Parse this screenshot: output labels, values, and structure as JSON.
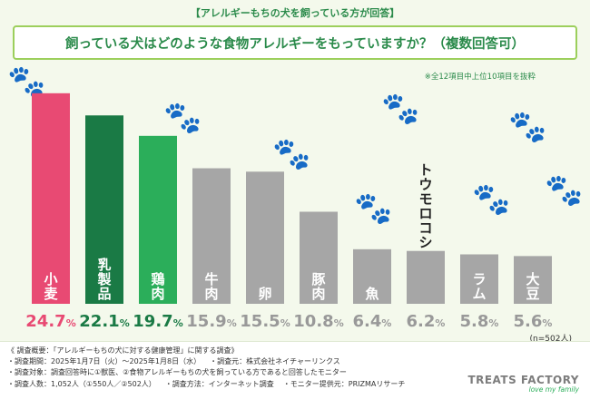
{
  "header": {
    "badge": "【アレルギーもちの犬を飼っている方が回答】",
    "title": "飼っている犬はどのような食物アレルギーをもっていますか？（複数回答可）",
    "note": "※全12項目中上位10項目を抜粋"
  },
  "chart_data": {
    "type": "bar",
    "title": "飼っている犬はどのような食物アレルギーをもっていますか？（複数回答可）",
    "categories": [
      "小麦",
      "乳製品",
      "鶏肉",
      "牛肉",
      "卵",
      "豚肉",
      "魚",
      "トウモロコシ",
      "ラム",
      "大豆"
    ],
    "values": [
      24.7,
      22.1,
      19.7,
      15.9,
      15.5,
      10.8,
      6.4,
      6.2,
      5.8,
      5.6
    ],
    "unit": "%",
    "value_labels": [
      "24.7%",
      "22.1%",
      "19.7%",
      "15.9%",
      "15.5%",
      "10.8%",
      "6.4%",
      "6.2%",
      "5.8%",
      "5.6%"
    ],
    "colors": [
      "#e84a73",
      "#1a7a45",
      "#2bae5a",
      "#a6a6a6",
      "#a6a6a6",
      "#a6a6a6",
      "#a6a6a6",
      "#a6a6a6",
      "#a6a6a6",
      "#a6a6a6"
    ],
    "ylim": [
      0,
      25
    ],
    "sample": "(n=502人)"
  },
  "footer": {
    "lines": [
      "《 調査概要：「アレルギーもちの犬に対する健康管理」に関する調査》",
      "・調査期間：2025年1月7日（火）～2025年1月8日（水）",
      "・調査元：株式会社ネイチャーリンクス",
      "・調査対象：調査回答時に①獣医、②食物アレルギーもちの犬を飼っている方であると回答したモニター",
      "・調査人数：1,052人（①550人／②502人）",
      "・調査方法：インターネット調査",
      "・モニター提供元：PRIZMAリサーチ"
    ]
  },
  "logo": {
    "main": "TREATS FACTORY",
    "sub": "love my family"
  }
}
